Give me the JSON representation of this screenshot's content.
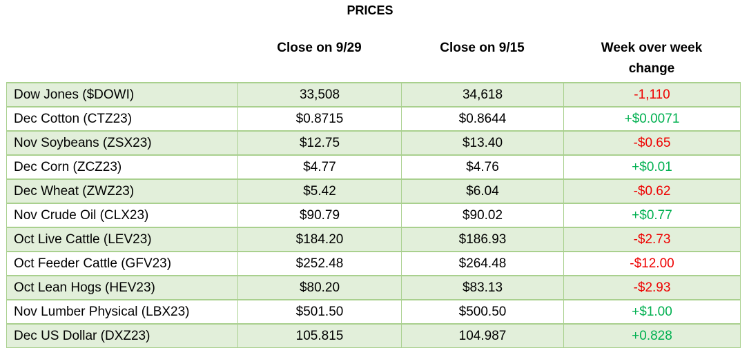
{
  "title": "PRICES",
  "headers": {
    "close_a": "Close on 9/29",
    "close_b": "Close on 9/15",
    "change_line1": "Week over week",
    "change_line2": "change"
  },
  "colors": {
    "row_shade": "#e2efda",
    "border": "#a9d08e",
    "negative": "#ee0000",
    "positive": "#00b050"
  },
  "rows": [
    {
      "name": "Dow Jones ($DOWI)",
      "close_a": "33,508",
      "close_b": "34,618",
      "change": "-1,110",
      "direction": "neg"
    },
    {
      "name": "Dec Cotton (CTZ23)",
      "close_a": "$0.8715",
      "close_b": "$0.8644",
      "change": "+$0.0071",
      "direction": "pos"
    },
    {
      "name": "Nov Soybeans (ZSX23)",
      "close_a": "$12.75",
      "close_b": "$13.40",
      "change": "-$0.65",
      "direction": "neg"
    },
    {
      "name": "Dec Corn (ZCZ23)",
      "close_a": "$4.77",
      "close_b": "$4.76",
      "change": "+$0.01",
      "direction": "pos"
    },
    {
      "name": "Dec Wheat (ZWZ23)",
      "close_a": "$5.42",
      "close_b": "$6.04",
      "change": "-$0.62",
      "direction": "neg"
    },
    {
      "name": "Nov Crude Oil (CLX23)",
      "close_a": "$90.79",
      "close_b": "$90.02",
      "change": "+$0.77",
      "direction": "pos"
    },
    {
      "name": "Oct Live Cattle (LEV23)",
      "close_a": "$184.20",
      "close_b": "$186.93",
      "change": "-$2.73",
      "direction": "neg"
    },
    {
      "name": "Oct Feeder Cattle (GFV23)",
      "close_a": "$252.48",
      "close_b": "$264.48",
      "change": "-$12.00",
      "direction": "neg"
    },
    {
      "name": "Oct Lean Hogs (HEV23)",
      "close_a": "$80.20",
      "close_b": "$83.13",
      "change": "-$2.93",
      "direction": "neg"
    },
    {
      "name": "Nov Lumber Physical (LBX23)",
      "close_a": "$501.50",
      "close_b": "$500.50",
      "change": "+$1.00",
      "direction": "pos"
    },
    {
      "name": "Dec US Dollar (DXZ23)",
      "close_a": "105.815",
      "close_b": "104.987",
      "change": "+0.828",
      "direction": "pos"
    }
  ]
}
